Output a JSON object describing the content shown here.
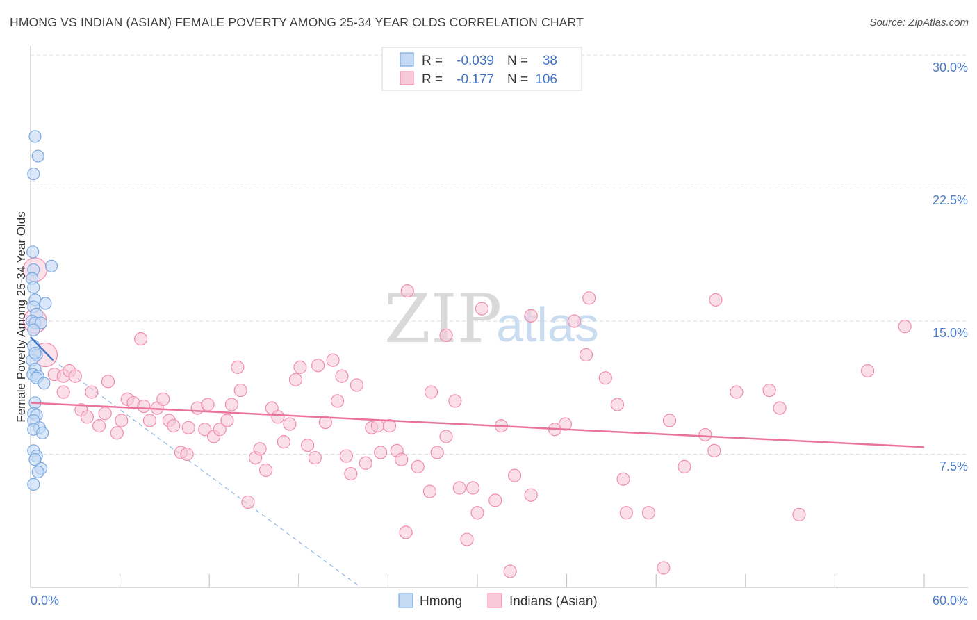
{
  "header": {
    "title": "HMONG VS INDIAN (ASIAN) FEMALE POVERTY AMONG 25-34 YEAR OLDS CORRELATION CHART",
    "source": "Source: ZipAtlas.com"
  },
  "watermark": {
    "zip": "ZIP",
    "atlas": "atlas"
  },
  "legend": {
    "rows": [
      {
        "r_label": "R =",
        "r_value": "-0.039",
        "n_label": "N =",
        "n_value": "38",
        "color": "#7aa9e0"
      },
      {
        "r_label": "R =",
        "r_value": "-0.177",
        "n_label": "N =",
        "n_value": "106",
        "color": "#f08cab"
      }
    ]
  },
  "bottom_legend": {
    "items": [
      "Hmong",
      "Indians (Asian)"
    ]
  },
  "chart_data": {
    "type": "scatter",
    "title": "HMONG VS INDIAN (ASIAN) FEMALE POVERTY AMONG 25-34 YEAR OLDS CORRELATION CHART",
    "xlabel": "",
    "ylabel": "Female Poverty Among 25-34 Year Olds",
    "xlim": [
      0,
      60
    ],
    "ylim": [
      0,
      30
    ],
    "x_tick_labels": [
      "0.0%",
      "60.0%"
    ],
    "y_ticks": [
      7.5,
      15.0,
      22.5,
      30.0
    ],
    "y_tick_labels": [
      "7.5%",
      "15.0%",
      "22.5%",
      "30.0%"
    ],
    "grid": true,
    "legend_position": "top-center",
    "series": [
      {
        "name": "Hmong",
        "color": "#7aa9e0",
        "fill": "#c5daf4",
        "points": [
          [
            0.3,
            25.4
          ],
          [
            0.5,
            24.3
          ],
          [
            0.2,
            23.3
          ],
          [
            0.15,
            18.9
          ],
          [
            1.4,
            18.1
          ],
          [
            0.2,
            17.9
          ],
          [
            0.1,
            17.4
          ],
          [
            0.2,
            16.9
          ],
          [
            0.3,
            16.2
          ],
          [
            1.0,
            16.0
          ],
          [
            0.2,
            15.8
          ],
          [
            0.4,
            15.4
          ],
          [
            0.1,
            15.0
          ],
          [
            0.3,
            14.9
          ],
          [
            0.7,
            14.9
          ],
          [
            0.2,
            14.5
          ],
          [
            0.2,
            13.6
          ],
          [
            0.4,
            13.1
          ],
          [
            0.1,
            12.8
          ],
          [
            0.3,
            12.3
          ],
          [
            0.15,
            12.0
          ],
          [
            0.5,
            11.9
          ],
          [
            0.4,
            11.8
          ],
          [
            0.9,
            11.5
          ],
          [
            0.3,
            10.4
          ],
          [
            0.2,
            9.8
          ],
          [
            0.4,
            9.7
          ],
          [
            0.2,
            9.4
          ],
          [
            0.6,
            9.0
          ],
          [
            0.2,
            8.9
          ],
          [
            0.8,
            8.7
          ],
          [
            0.2,
            7.7
          ],
          [
            0.4,
            7.4
          ],
          [
            0.3,
            7.2
          ],
          [
            0.7,
            6.7
          ],
          [
            0.5,
            6.5
          ],
          [
            0.2,
            5.8
          ],
          [
            0.3,
            13.2
          ]
        ],
        "trend": {
          "x": [
            0,
            1.5
          ],
          "y": [
            14.1,
            12.8
          ]
        },
        "trend_extension": {
          "x": [
            1.5,
            22.0
          ],
          "y": [
            12.8,
            0.1
          ]
        }
      },
      {
        "name": "Indians (Asian)",
        "color": "#f08cab",
        "fill": "#f8c9d8",
        "points": [
          [
            0.3,
            17.9
          ],
          [
            0.3,
            15.0
          ],
          [
            1.0,
            13.1
          ],
          [
            1.6,
            12.0
          ],
          [
            2.2,
            11.9
          ],
          [
            2.6,
            12.2
          ],
          [
            3.0,
            11.9
          ],
          [
            2.2,
            11.0
          ],
          [
            4.1,
            11.0
          ],
          [
            5.2,
            11.6
          ],
          [
            7.4,
            14.0
          ],
          [
            3.4,
            10.0
          ],
          [
            3.8,
            9.6
          ],
          [
            4.6,
            9.1
          ],
          [
            5.0,
            9.8
          ],
          [
            5.8,
            8.7
          ],
          [
            6.1,
            9.4
          ],
          [
            6.5,
            10.6
          ],
          [
            6.9,
            10.4
          ],
          [
            7.6,
            10.2
          ],
          [
            8.0,
            9.4
          ],
          [
            8.5,
            10.1
          ],
          [
            8.9,
            10.6
          ],
          [
            9.3,
            9.4
          ],
          [
            9.6,
            9.1
          ],
          [
            10.1,
            7.6
          ],
          [
            10.5,
            7.5
          ],
          [
            10.6,
            9.0
          ],
          [
            11.2,
            10.1
          ],
          [
            11.7,
            8.9
          ],
          [
            11.9,
            10.3
          ],
          [
            12.3,
            8.5
          ],
          [
            12.7,
            8.9
          ],
          [
            13.2,
            9.4
          ],
          [
            13.5,
            10.3
          ],
          [
            13.9,
            12.4
          ],
          [
            14.1,
            11.1
          ],
          [
            14.6,
            4.8
          ],
          [
            15.1,
            7.3
          ],
          [
            15.4,
            7.8
          ],
          [
            15.8,
            6.6
          ],
          [
            16.2,
            10.1
          ],
          [
            16.6,
            9.6
          ],
          [
            17.0,
            8.2
          ],
          [
            17.4,
            9.2
          ],
          [
            17.8,
            11.7
          ],
          [
            18.1,
            12.4
          ],
          [
            18.6,
            8.0
          ],
          [
            19.1,
            7.3
          ],
          [
            19.3,
            12.5
          ],
          [
            19.8,
            9.3
          ],
          [
            20.3,
            12.8
          ],
          [
            20.6,
            10.5
          ],
          [
            20.9,
            11.9
          ],
          [
            21.2,
            7.4
          ],
          [
            21.5,
            6.4
          ],
          [
            21.9,
            11.4
          ],
          [
            22.5,
            7.0
          ],
          [
            22.9,
            9.0
          ],
          [
            23.3,
            9.1
          ],
          [
            23.5,
            7.6
          ],
          [
            24.1,
            9.1
          ],
          [
            24.6,
            7.7
          ],
          [
            24.9,
            7.2
          ],
          [
            25.2,
            3.1
          ],
          [
            25.3,
            16.7
          ],
          [
            26.0,
            6.8
          ],
          [
            26.8,
            5.4
          ],
          [
            26.9,
            11.0
          ],
          [
            27.3,
            7.6
          ],
          [
            27.9,
            14.2
          ],
          [
            27.9,
            8.5
          ],
          [
            28.5,
            10.5
          ],
          [
            28.8,
            5.6
          ],
          [
            29.3,
            2.7
          ],
          [
            29.7,
            5.6
          ],
          [
            30.0,
            4.2
          ],
          [
            30.3,
            15.7
          ],
          [
            31.2,
            4.9
          ],
          [
            31.6,
            9.1
          ],
          [
            32.2,
            0.9
          ],
          [
            32.5,
            6.3
          ],
          [
            33.6,
            5.2
          ],
          [
            33.6,
            15.3
          ],
          [
            35.2,
            8.9
          ],
          [
            35.9,
            9.2
          ],
          [
            36.5,
            15.0
          ],
          [
            37.3,
            13.1
          ],
          [
            37.5,
            16.3
          ],
          [
            38.6,
            11.8
          ],
          [
            39.4,
            10.3
          ],
          [
            39.8,
            6.1
          ],
          [
            40.0,
            4.2
          ],
          [
            41.5,
            4.2
          ],
          [
            42.5,
            1.1
          ],
          [
            42.9,
            9.4
          ],
          [
            43.9,
            6.8
          ],
          [
            45.3,
            8.6
          ],
          [
            45.9,
            7.7
          ],
          [
            46.0,
            16.2
          ],
          [
            47.4,
            11.0
          ],
          [
            49.6,
            11.1
          ],
          [
            50.3,
            10.1
          ],
          [
            51.6,
            4.1
          ],
          [
            56.2,
            12.2
          ],
          [
            58.7,
            14.7
          ]
        ],
        "trend": {
          "x": [
            0,
            60
          ],
          "y": [
            10.4,
            7.9
          ]
        }
      }
    ]
  }
}
